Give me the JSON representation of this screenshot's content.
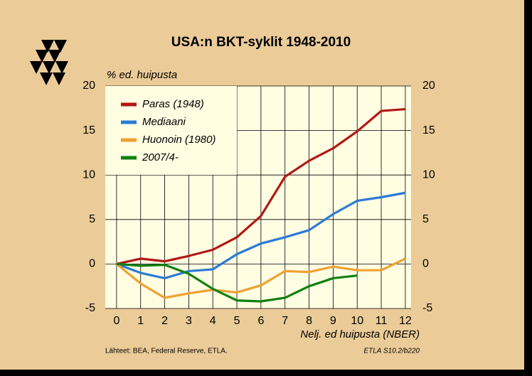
{
  "chart_data": {
    "type": "line",
    "title": "USA:n BKT-syklit 1948-2010",
    "y_label": "% ed. huipusta",
    "x_label": "Nelj. ed huipusta (NBER)",
    "source": "Lähteet:   BEA, Federal Reserve, ETLA.",
    "code": "ETLA S10.2/b220",
    "x": [
      0,
      1,
      2,
      3,
      4,
      5,
      6,
      7,
      8,
      9,
      10,
      11,
      12
    ],
    "xlim": [
      -0.47,
      12.24
    ],
    "xticks": [
      0,
      1,
      2,
      3,
      4,
      5,
      6,
      7,
      8,
      9,
      10,
      11,
      12
    ],
    "ylim": [
      -5,
      20
    ],
    "yticks": [
      -5,
      0,
      5,
      10,
      15,
      20
    ],
    "grid": true,
    "legend": "upper left",
    "series": [
      {
        "name": "Paras (1948)",
        "color": "#b01818",
        "values": [
          0,
          0.6,
          0.3,
          0.9,
          1.6,
          3.0,
          5.4,
          9.8,
          11.6,
          13.0,
          14.9,
          17.2,
          17.4
        ]
      },
      {
        "name": "Mediaani",
        "color": "#2a7ad8",
        "values": [
          0,
          -1.0,
          -1.6,
          -0.8,
          -0.6,
          1.1,
          2.3,
          3.0,
          3.8,
          5.6,
          7.1,
          7.5,
          8.0
        ]
      },
      {
        "name": "Huonoin (1980)",
        "color": "#f0a030",
        "values": [
          0,
          -2.2,
          -3.8,
          -3.3,
          -2.9,
          -3.2,
          -2.4,
          -0.8,
          -0.9,
          -0.3,
          -0.7,
          -0.7,
          0.6
        ]
      },
      {
        "name": "2007/4-",
        "color": "#108010",
        "values": [
          0,
          -0.2,
          -0.1,
          -1.1,
          -2.8,
          -4.1,
          -4.2,
          -3.8,
          -2.5,
          -1.6,
          -1.3,
          null,
          null
        ]
      }
    ]
  }
}
